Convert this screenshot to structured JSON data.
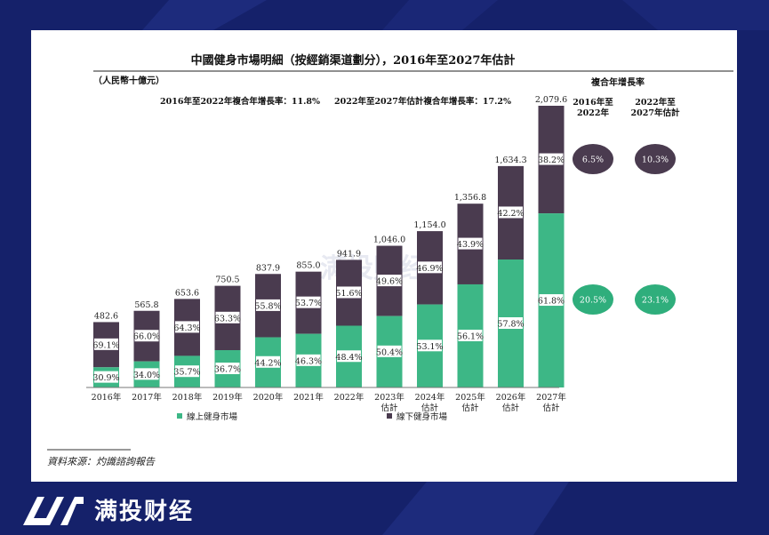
{
  "brand": {
    "name": "满投财经",
    "logo_icon": "mantou-logo-icon"
  },
  "colors": {
    "online": "#3db786",
    "offline": "#4a3b4f",
    "online_soft": "#2fae7c",
    "background": "#15216a"
  },
  "chart_data": {
    "type": "bar",
    "stacked": true,
    "title": "中國健身市場明細（按經銷渠道劃分），2016年至2027年估計",
    "unit": "（人民幣十億元）",
    "cagr_notes": [
      "2016年至2022年複合年增長率：11.8%",
      "2022年至2027年估計複合年增長率：17.2%"
    ],
    "categories": [
      "2016年",
      "2017年",
      "2018年",
      "2019年",
      "2020年",
      "2021年",
      "2022年",
      "2023年\n估計",
      "2024年\n估計",
      "2025年\n估計",
      "2026年\n估計",
      "2027年\n估計"
    ],
    "totals": [
      482.6,
      565.8,
      653.6,
      750.5,
      837.9,
      855.0,
      941.9,
      1046.0,
      1154.0,
      1356.8,
      1634.3,
      2079.6
    ],
    "total_labels": [
      "482.6",
      "565.8",
      "653.6",
      "750.5",
      "837.9",
      "855.0",
      "941.9",
      "1,046.0",
      "1,154.0",
      "1,356.8",
      "1,634.3",
      "2,079.6"
    ],
    "series": [
      {
        "name": "線上健身市場",
        "share_labels": [
          "30.9%",
          "34.0%",
          "35.7%",
          "36.7%",
          "44.2%",
          "46.3%",
          "48.4%",
          "50.4%",
          "53.1%",
          "56.1%",
          "57.8%",
          "61.8%"
        ]
      },
      {
        "name": "線下健身市場",
        "share_labels": [
          "69.1%",
          "66.0%",
          "64.3%",
          "63.3%",
          "55.8%",
          "53.7%",
          "51.6%",
          "49.6%",
          "46.9%",
          "43.9%",
          "42.2%",
          "38.2%"
        ]
      }
    ],
    "ylim": [
      0,
      2079.6
    ],
    "legend_position": "bottom",
    "cagr_table": {
      "title": "複合年增長率",
      "headers": [
        "2016年至\n2022年",
        "2022年至\n2027年估計"
      ],
      "rows": [
        {
          "series": "線下健身市場",
          "values": [
            "6.5%",
            "10.3%"
          ]
        },
        {
          "series": "線上健身市場",
          "values": [
            "20.5%",
            "23.1%"
          ]
        }
      ]
    },
    "source": "資料來源：灼識諮詢報告",
    "watermark": "满投财经"
  }
}
